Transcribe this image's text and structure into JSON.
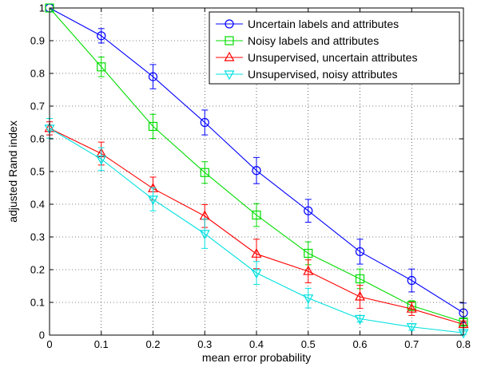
{
  "chart_data": {
    "type": "line",
    "xlabel": "mean error probability",
    "ylabel": "adjusted Rand index",
    "xlim": [
      0,
      0.8
    ],
    "ylim": [
      0,
      1
    ],
    "x": [
      0,
      0.1,
      0.2,
      0.3,
      0.4,
      0.5,
      0.6,
      0.7,
      0.8
    ],
    "xticks": [
      0,
      0.1,
      0.2,
      0.3,
      0.4,
      0.5,
      0.6,
      0.7,
      0.8
    ],
    "xtick_labels": [
      "0",
      "0.1",
      "0.2",
      "0.3",
      "0.4",
      "0.5",
      "0.6",
      "0.7",
      "0.8"
    ],
    "yticks": [
      0,
      0.1,
      0.2,
      0.3,
      0.4,
      0.5,
      0.6,
      0.7,
      0.8,
      0.9,
      1
    ],
    "ytick_labels": [
      "0",
      "0.1",
      "0.2",
      "0.3",
      "0.4",
      "0.5",
      "0.6",
      "0.7",
      "0.8",
      "0.9",
      "1"
    ],
    "grid": true,
    "legend_position": "top-right",
    "series": [
      {
        "name": "Uncertain labels and attributes",
        "color": "#0000ff",
        "marker": "circle",
        "values": [
          1.0,
          0.915,
          0.79,
          0.65,
          0.503,
          0.38,
          0.255,
          0.167,
          0.068
        ],
        "errors": [
          0.0,
          0.022,
          0.037,
          0.038,
          0.04,
          0.035,
          0.038,
          0.035,
          0.03
        ]
      },
      {
        "name": "Noisy labels and attributes",
        "color": "#00dd00",
        "marker": "square",
        "values": [
          1.0,
          0.82,
          0.638,
          0.497,
          0.367,
          0.25,
          0.172,
          0.09,
          0.04
        ],
        "errors": [
          0.0,
          0.03,
          0.037,
          0.033,
          0.035,
          0.035,
          0.03,
          0.015,
          0.01
        ]
      },
      {
        "name": "Unsupervised, uncertain attributes",
        "color": "#ff0000",
        "marker": "triangle-up",
        "values": [
          0.632,
          0.555,
          0.448,
          0.364,
          0.248,
          0.195,
          0.117,
          0.08,
          0.033
        ],
        "errors": [
          0.02,
          0.035,
          0.035,
          0.035,
          0.045,
          0.035,
          0.035,
          0.02,
          0.01
        ]
      },
      {
        "name": "Unsupervised, noisy attributes",
        "color": "#00e0e0",
        "marker": "triangle-down",
        "values": [
          0.632,
          0.538,
          0.415,
          0.31,
          0.19,
          0.113,
          0.05,
          0.025,
          0.007
        ],
        "errors": [
          0.03,
          0.035,
          0.035,
          0.045,
          0.035,
          0.03,
          0.01,
          0.01,
          0.005
        ]
      }
    ]
  }
}
